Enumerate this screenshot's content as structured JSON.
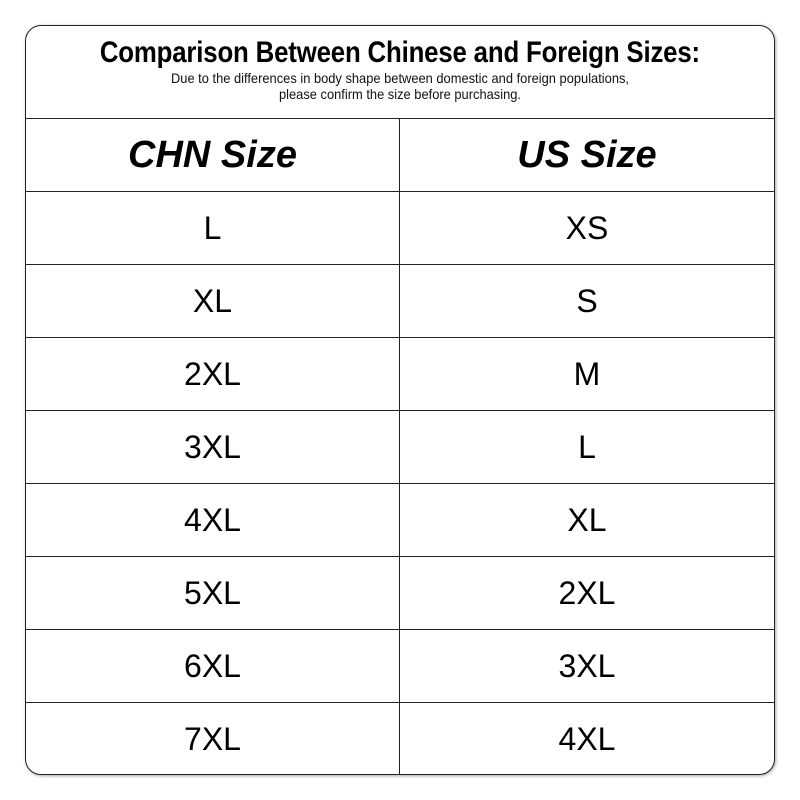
{
  "title": "Comparison Between Chinese and Foreign Sizes:",
  "subtitle_line1": "Due to the differences in body shape between domestic and foreign populations,",
  "subtitle_line2": "please confirm the size before purchasing.",
  "table": {
    "headers": [
      "CHN Size",
      "US Size"
    ],
    "rows": [
      [
        "L",
        "XS"
      ],
      [
        "XL",
        "S"
      ],
      [
        "2XL",
        "M"
      ],
      [
        "3XL",
        "L"
      ],
      [
        "4XL",
        "XL"
      ],
      [
        "5XL",
        "2XL"
      ],
      [
        "6XL",
        "3XL"
      ],
      [
        "7XL",
        "4XL"
      ]
    ]
  }
}
